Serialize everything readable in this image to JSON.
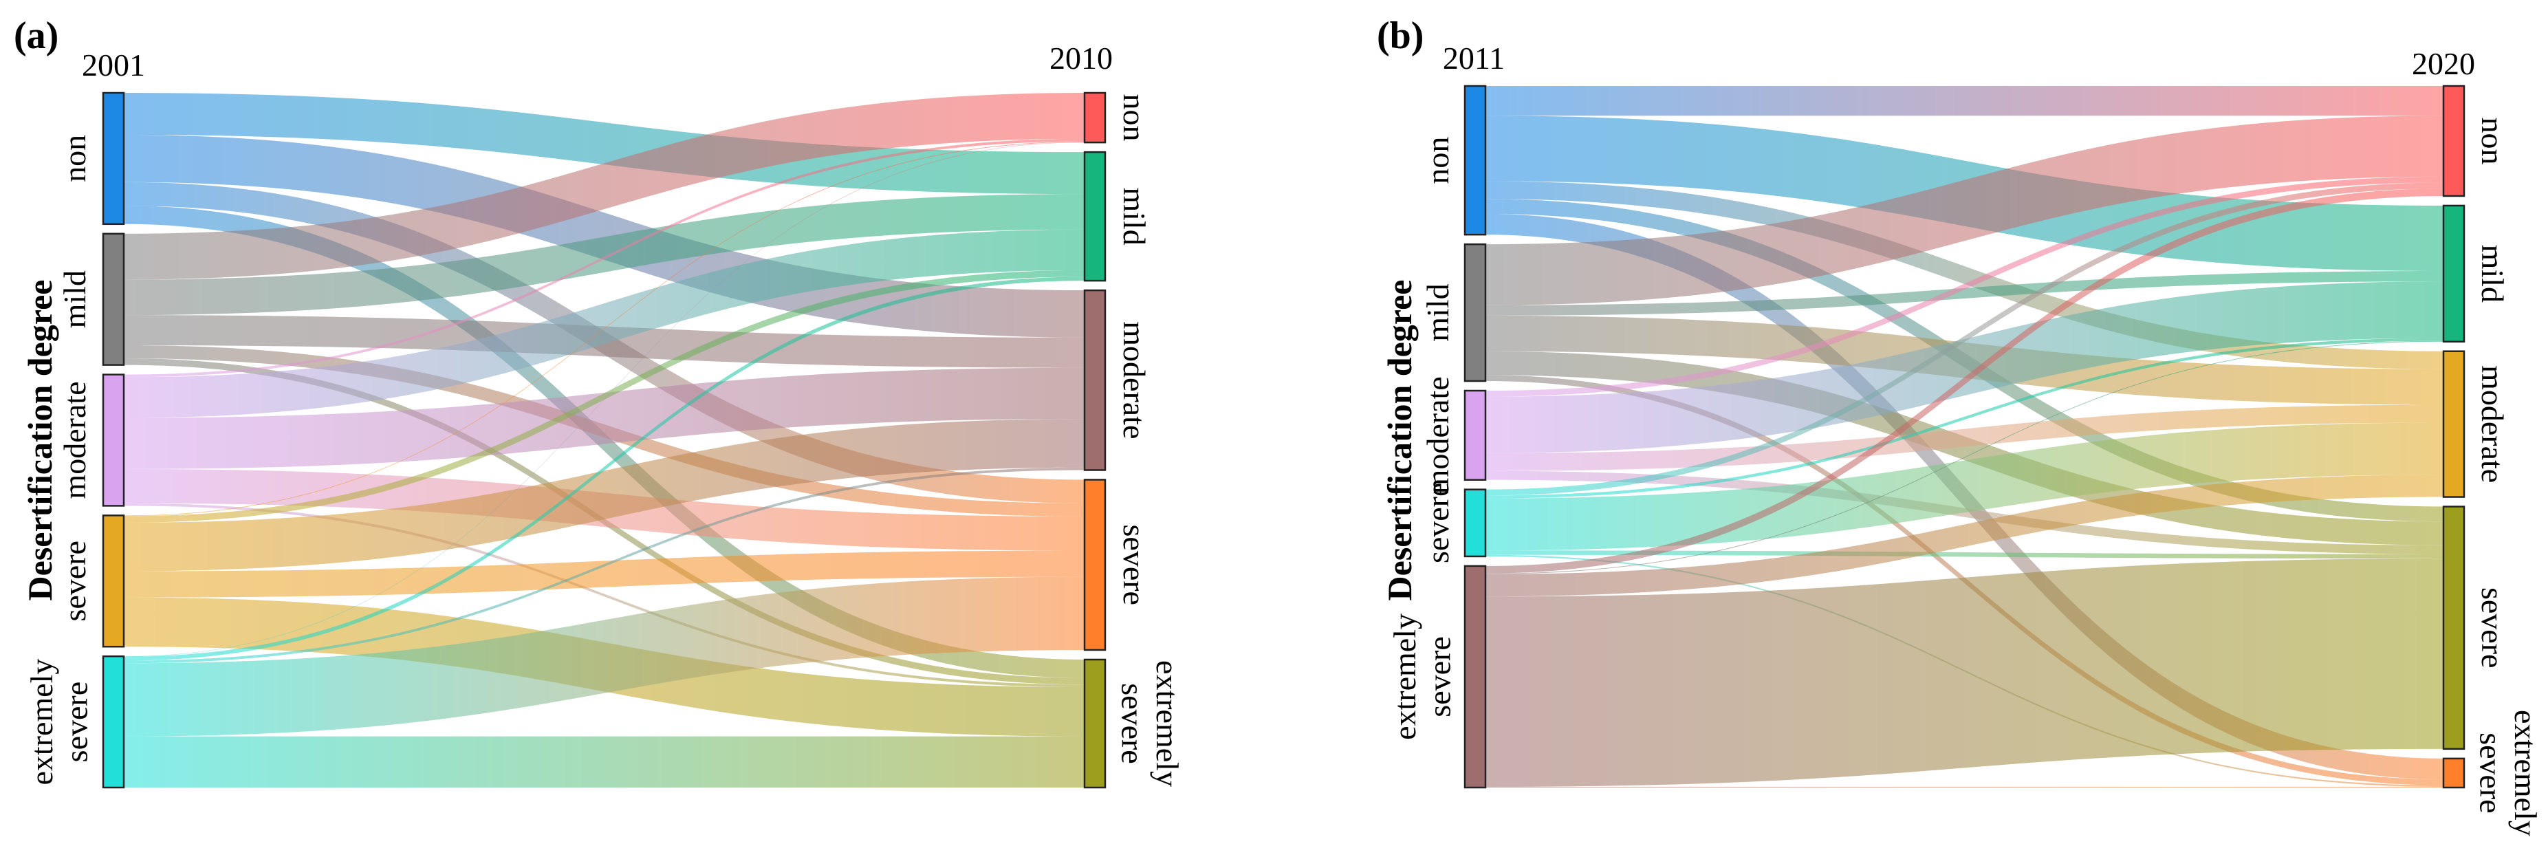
{
  "axis_title": "Desertification degree",
  "colors": {
    "left_nodes": [
      "#1e88e5",
      "#808080",
      "#d9a3f0",
      "#e5a822",
      "#22e0d9"
    ],
    "right_nodes_a": [
      "#ff5a5a",
      "#16b57e",
      "#9e6e6e",
      "#ff7f2a",
      "#9e9e1e"
    ],
    "right_nodes_b": [
      "#ff5a5a",
      "#16b57e",
      "#e5a822",
      "#9e9e1e",
      "#ff7f2a"
    ],
    "right_node_b_extreme": "#ff7f2a",
    "left_node_b_extreme": "#9e6e6e"
  },
  "chart_data": [
    {
      "type": "sankey",
      "panel_label": "(a)",
      "left_year": "2001",
      "right_year": "2010",
      "left_categories": [
        "non",
        "mild",
        "moderate",
        "severe",
        "extremely severe"
      ],
      "right_categories": [
        "non",
        "mild",
        "moderate",
        "severe",
        "extremely severe"
      ],
      "flows": [
        [
          0,
          32,
          36,
          18,
          14
        ],
        [
          35,
          27,
          23,
          10,
          5
        ],
        [
          2,
          31,
          39,
          26,
          2
        ],
        [
          0.5,
          5,
          37,
          20,
          37.5
        ],
        [
          0.3,
          3,
          2,
          55.7,
          39
        ]
      ]
    },
    {
      "type": "sankey",
      "panel_label": "(b)",
      "left_year": "2011",
      "right_year": "2020",
      "left_categories": [
        "non",
        "mild",
        "moderate",
        "severe",
        "extremely severe"
      ],
      "right_categories": [
        "non",
        "mild",
        "moderate",
        "severe",
        "extremely severe"
      ],
      "flows": [
        [
          20,
          44,
          12,
          10,
          14
        ],
        [
          41,
          7,
          24,
          16,
          4
        ],
        [
          4,
          38,
          12,
          6,
          0
        ],
        [
          4,
          2,
          35,
          3,
          1
        ],
        [
          5,
          0.5,
          15,
          128,
          0.5
        ]
      ]
    }
  ]
}
